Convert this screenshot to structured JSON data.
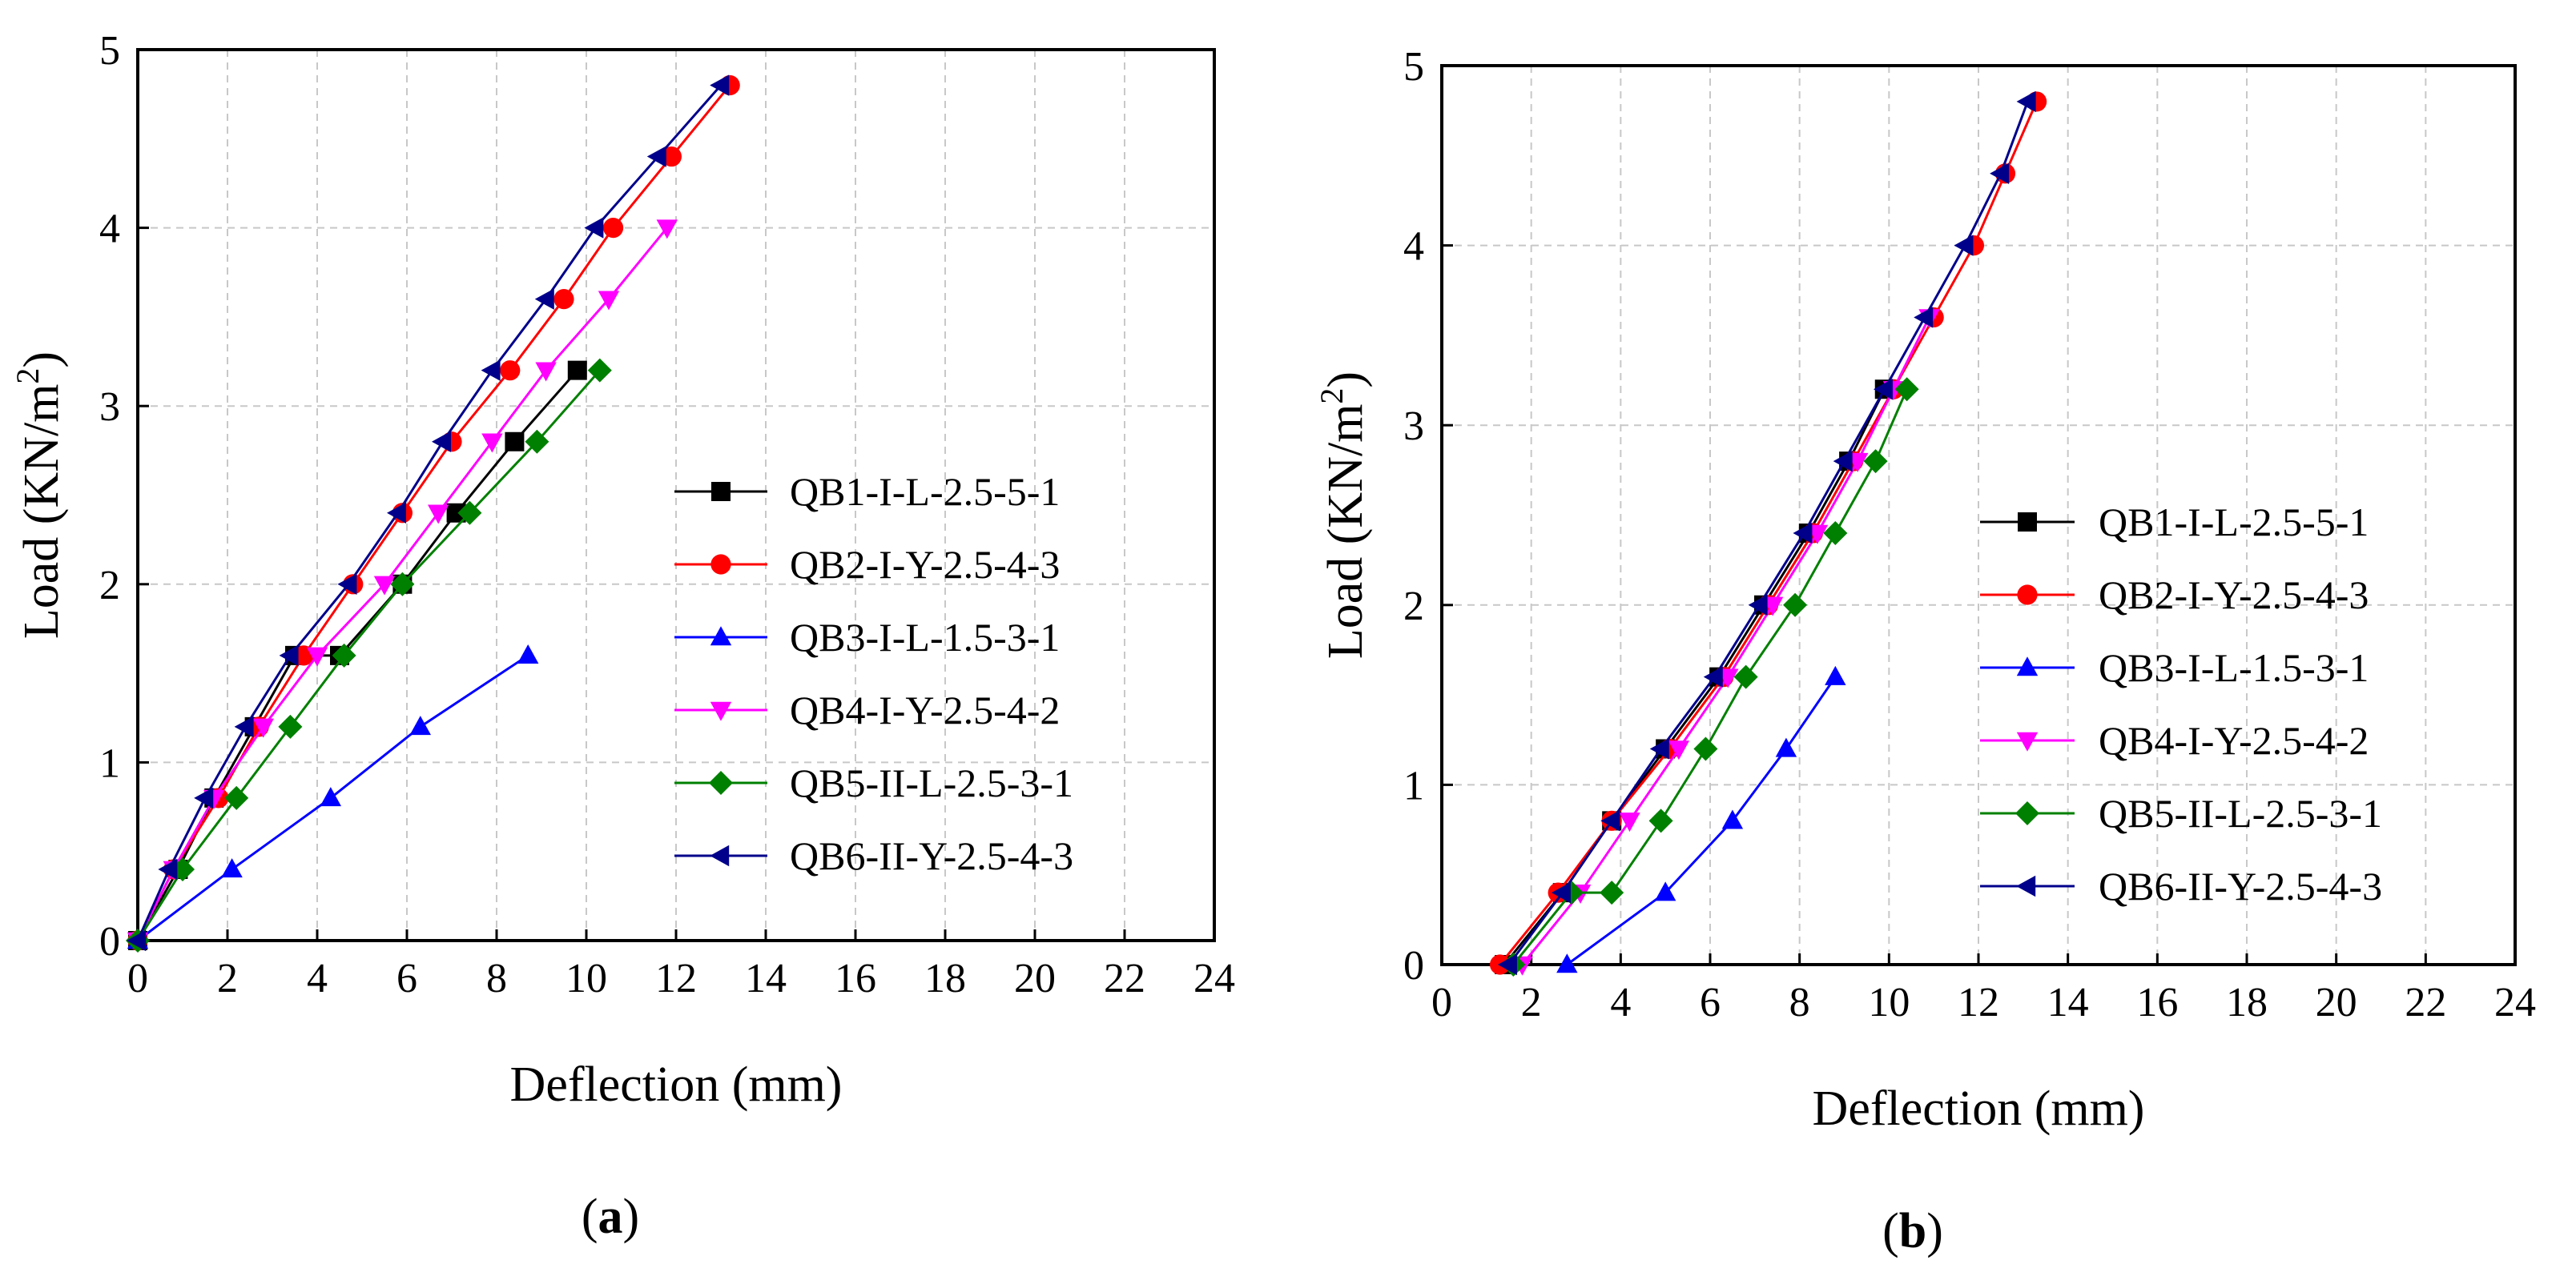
{
  "chart_data": [
    {
      "type": "line",
      "panel_label": "a",
      "xlabel": "Deflection (mm)",
      "ylabel_main": "Load (KN/m",
      "ylabel_sup": "2",
      "ylabel_close": ")",
      "xlim": [
        0,
        24
      ],
      "ylim": [
        0,
        5
      ],
      "xticks": [
        0,
        2,
        4,
        6,
        8,
        10,
        12,
        14,
        16,
        18,
        20,
        22,
        24
      ],
      "yticks": [
        0,
        1,
        2,
        3,
        4,
        5
      ],
      "grid": true,
      "legend_position": "center-right",
      "series": [
        {
          "name": "QB1-I-L-2.5-5-1",
          "color": "#000000",
          "marker": "square",
          "x": [
            0,
            0.9,
            1.7,
            2.6,
            3.5,
            4.5,
            5.9,
            7.1,
            8.4,
            9.8
          ],
          "y": [
            0,
            0.4,
            0.8,
            1.2,
            1.6,
            1.6,
            2.0,
            2.4,
            2.8,
            3.2
          ]
        },
        {
          "name": "QB2-I-Y-2.5-4-3",
          "color": "#ff0000",
          "marker": "circle",
          "x": [
            0,
            0.8,
            1.8,
            2.7,
            3.7,
            4.8,
            5.9,
            7.0,
            8.3,
            9.5,
            10.6,
            11.9,
            13.2
          ],
          "y": [
            0,
            0.4,
            0.8,
            1.2,
            1.6,
            2.0,
            2.4,
            2.8,
            3.2,
            3.6,
            4.0,
            4.4,
            4.8
          ]
        },
        {
          "name": "QB3-I-L-1.5-3-1",
          "color": "#0000ff",
          "marker": "triangle-up",
          "x": [
            0,
            2.1,
            4.3,
            6.3,
            8.7
          ],
          "y": [
            0,
            0.4,
            0.8,
            1.2,
            1.6
          ]
        },
        {
          "name": "QB4-I-Y-2.5-4-2",
          "color": "#ff00ff",
          "marker": "triangle-down",
          "x": [
            0,
            0.8,
            1.7,
            2.8,
            4.0,
            5.5,
            6.7,
            7.9,
            9.1,
            10.5,
            11.8
          ],
          "y": [
            0,
            0.4,
            0.8,
            1.2,
            1.6,
            2.0,
            2.4,
            2.8,
            3.2,
            3.6,
            4.0
          ]
        },
        {
          "name": "QB5-II-L-2.5-3-1",
          "color": "#008000",
          "marker": "diamond",
          "x": [
            0,
            1.0,
            2.2,
            3.4,
            4.6,
            5.9,
            7.4,
            8.9,
            10.3
          ],
          "y": [
            0,
            0.4,
            0.8,
            1.2,
            1.6,
            2.0,
            2.4,
            2.8,
            3.2
          ]
        },
        {
          "name": "QB6-II-Y-2.5-4-3",
          "color": "#00008b",
          "marker": "triangle-left",
          "x": [
            0,
            0.7,
            1.5,
            2.4,
            3.4,
            4.7,
            5.8,
            6.8,
            7.9,
            9.1,
            10.2,
            11.6,
            13.0
          ],
          "y": [
            0,
            0.4,
            0.8,
            1.2,
            1.6,
            2.0,
            2.4,
            2.8,
            3.2,
            3.6,
            4.0,
            4.4,
            4.8
          ]
        }
      ]
    },
    {
      "type": "line",
      "panel_label": "b",
      "xlabel": "Deflection (mm)",
      "ylabel_main": "Load (KN/m",
      "ylabel_sup": "2",
      "ylabel_close": ")",
      "xlim": [
        0,
        24
      ],
      "ylim": [
        0,
        5
      ],
      "xticks": [
        0,
        2,
        4,
        6,
        8,
        10,
        12,
        14,
        16,
        18,
        20,
        22,
        24
      ],
      "yticks": [
        0,
        1,
        2,
        3,
        4,
        5
      ],
      "grid": true,
      "legend_position": "center-right",
      "series": [
        {
          "name": "QB1-I-L-2.5-5-1",
          "color": "#000000",
          "marker": "square",
          "x": [
            1.4,
            2.7,
            3.8,
            5.0,
            6.2,
            7.2,
            8.2,
            9.1,
            9.9
          ],
          "y": [
            0,
            0.4,
            0.8,
            1.2,
            1.6,
            2.0,
            2.4,
            2.8,
            3.2
          ]
        },
        {
          "name": "QB2-I-Y-2.5-4-3",
          "color": "#ff0000",
          "marker": "circle",
          "x": [
            1.3,
            2.6,
            3.8,
            5.1,
            6.3,
            7.3,
            8.3,
            9.2,
            10.1,
            11.0,
            11.9,
            12.6,
            13.3
          ],
          "y": [
            0,
            0.4,
            0.8,
            1.2,
            1.6,
            2.0,
            2.4,
            2.8,
            3.2,
            3.6,
            4.0,
            4.4,
            4.8
          ]
        },
        {
          "name": "QB3-I-L-1.5-3-1",
          "color": "#0000ff",
          "marker": "triangle-up",
          "x": [
            2.8,
            5.0,
            6.5,
            7.7,
            8.8
          ],
          "y": [
            0,
            0.4,
            0.8,
            1.2,
            1.6
          ]
        },
        {
          "name": "QB4-I-Y-2.5-4-2",
          "color": "#ff00ff",
          "marker": "triangle-down",
          "x": [
            1.8,
            3.1,
            4.2,
            5.3,
            6.4,
            7.4,
            8.4,
            9.3,
            10.1,
            10.9
          ],
          "y": [
            0,
            0.4,
            0.8,
            1.2,
            1.6,
            2.0,
            2.4,
            2.8,
            3.2,
            3.6
          ]
        },
        {
          "name": "QB5-II-L-2.5-3-1",
          "color": "#008000",
          "marker": "diamond",
          "x": [
            1.6,
            2.9,
            3.8,
            4.9,
            5.9,
            6.8,
            7.9,
            8.8,
            9.7,
            10.4
          ],
          "y": [
            0,
            0.4,
            0.4,
            0.8,
            1.2,
            1.6,
            2.0,
            2.4,
            2.8,
            3.2
          ]
        },
        {
          "name": "QB6-II-Y-2.5-4-3",
          "color": "#00008b",
          "marker": "triangle-left",
          "x": [
            1.5,
            2.7,
            3.8,
            4.9,
            6.1,
            7.1,
            8.1,
            9.0,
            9.9,
            10.8,
            11.7,
            12.5,
            13.1
          ],
          "y": [
            0,
            0.4,
            0.8,
            1.2,
            1.6,
            2.0,
            2.4,
            2.8,
            3.2,
            3.6,
            4.0,
            4.4,
            4.8
          ]
        }
      ]
    }
  ]
}
